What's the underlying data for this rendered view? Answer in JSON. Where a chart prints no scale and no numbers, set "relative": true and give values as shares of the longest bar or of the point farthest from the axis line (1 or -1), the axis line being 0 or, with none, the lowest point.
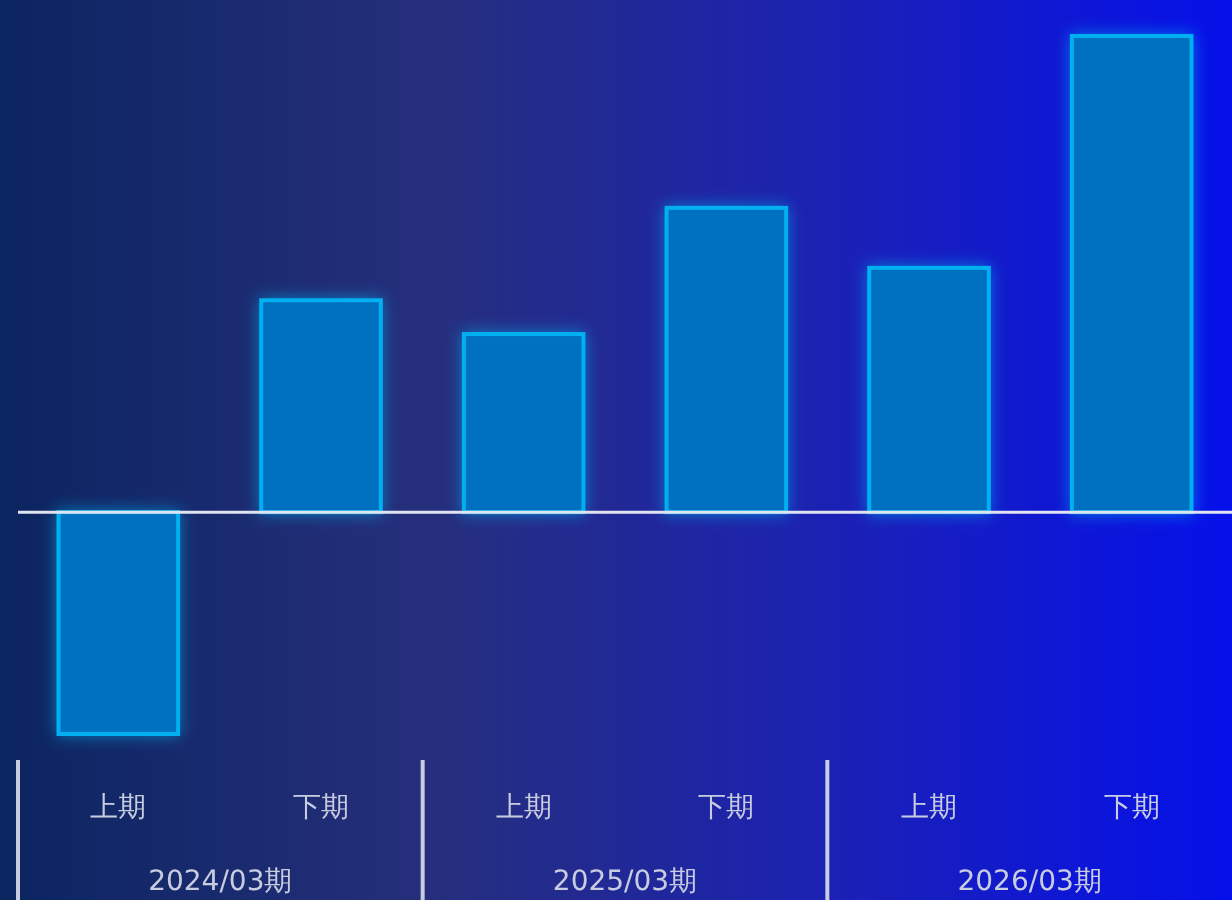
{
  "chart_data": {
    "type": "bar",
    "relative": true,
    "categories": [
      "上期",
      "下期",
      "上期",
      "下期",
      "上期",
      "下期"
    ],
    "values": [
      -0.466,
      0.445,
      0.374,
      0.639,
      0.513,
      1
    ],
    "color": "#0070c0",
    "annotations": [
      "2024/03期",
      "2025/03期",
      "2026/03期"
    ]
  }
}
